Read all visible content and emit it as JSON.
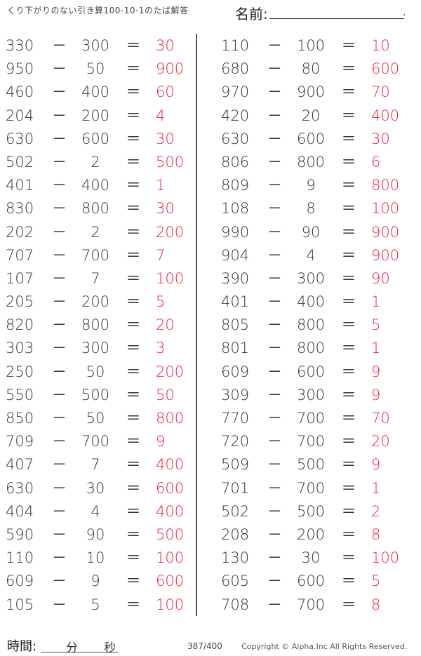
{
  "header": {
    "title": "くり下がりのない引き算100-10-1のたば解答",
    "name_label": "名前:",
    "name_end": "."
  },
  "colors": {
    "answer": "#f0203c",
    "text": "#333333"
  },
  "left": [
    [
      "330",
      "300",
      "30"
    ],
    [
      "950",
      "50",
      "900"
    ],
    [
      "460",
      "400",
      "60"
    ],
    [
      "204",
      "200",
      "4"
    ],
    [
      "630",
      "600",
      "30"
    ],
    [
      "502",
      "2",
      "500"
    ],
    [
      "401",
      "400",
      "1"
    ],
    [
      "830",
      "800",
      "30"
    ],
    [
      "202",
      "2",
      "200"
    ],
    [
      "707",
      "700",
      "7"
    ],
    [
      "107",
      "7",
      "100"
    ],
    [
      "205",
      "200",
      "5"
    ],
    [
      "820",
      "800",
      "20"
    ],
    [
      "303",
      "300",
      "3"
    ],
    [
      "250",
      "50",
      "200"
    ],
    [
      "550",
      "500",
      "50"
    ],
    [
      "850",
      "50",
      "800"
    ],
    [
      "709",
      "700",
      "9"
    ],
    [
      "407",
      "7",
      "400"
    ],
    [
      "630",
      "30",
      "600"
    ],
    [
      "404",
      "4",
      "400"
    ],
    [
      "590",
      "90",
      "500"
    ],
    [
      "110",
      "10",
      "100"
    ],
    [
      "609",
      "9",
      "600"
    ],
    [
      "105",
      "5",
      "100"
    ]
  ],
  "right": [
    [
      "110",
      "100",
      "10"
    ],
    [
      "680",
      "80",
      "600"
    ],
    [
      "970",
      "900",
      "70"
    ],
    [
      "420",
      "20",
      "400"
    ],
    [
      "630",
      "600",
      "30"
    ],
    [
      "806",
      "800",
      "6"
    ],
    [
      "809",
      "9",
      "800"
    ],
    [
      "108",
      "8",
      "100"
    ],
    [
      "990",
      "90",
      "900"
    ],
    [
      "904",
      "4",
      "900"
    ],
    [
      "390",
      "300",
      "90"
    ],
    [
      "401",
      "400",
      "1"
    ],
    [
      "805",
      "800",
      "5"
    ],
    [
      "801",
      "800",
      "1"
    ],
    [
      "609",
      "600",
      "9"
    ],
    [
      "309",
      "300",
      "9"
    ],
    [
      "770",
      "700",
      "70"
    ],
    [
      "720",
      "700",
      "20"
    ],
    [
      "509",
      "500",
      "9"
    ],
    [
      "701",
      "700",
      "1"
    ],
    [
      "502",
      "500",
      "2"
    ],
    [
      "208",
      "200",
      "8"
    ],
    [
      "130",
      "30",
      "100"
    ],
    [
      "605",
      "600",
      "5"
    ],
    [
      "708",
      "700",
      "8"
    ]
  ],
  "symbols": {
    "minus": "－",
    "equals": "＝"
  },
  "footer": {
    "time_label": "時間:",
    "minutes": "分",
    "seconds": "秒",
    "page": "387/400",
    "copyright": "Copyright ©  Alpha.Inc All Rights Reserved."
  }
}
